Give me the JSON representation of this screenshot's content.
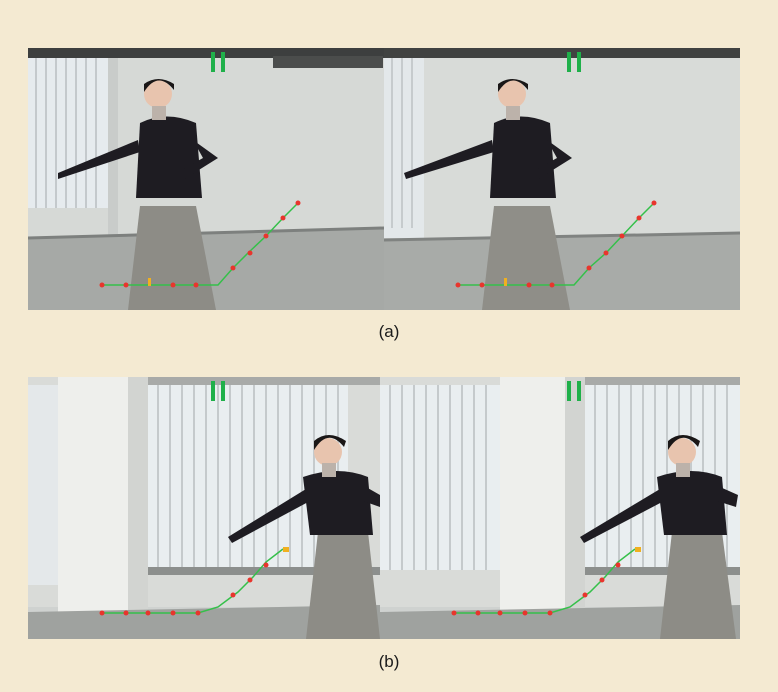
{
  "figure": {
    "background": "#f4ead2",
    "captions": {
      "a": "(a)",
      "b": "(b)"
    },
    "accent_colors": {
      "trajectory_line": "#35c04a",
      "trajectory_points": "#e8352d",
      "pause_icon": "#1fb04a",
      "floor": "#9a9d99",
      "wall": "#d9dbd8"
    },
    "icons": [
      "pause-icon"
    ],
    "panels": [
      "frame-a-left",
      "frame-a-right",
      "frame-b-left",
      "frame-b-right"
    ]
  }
}
